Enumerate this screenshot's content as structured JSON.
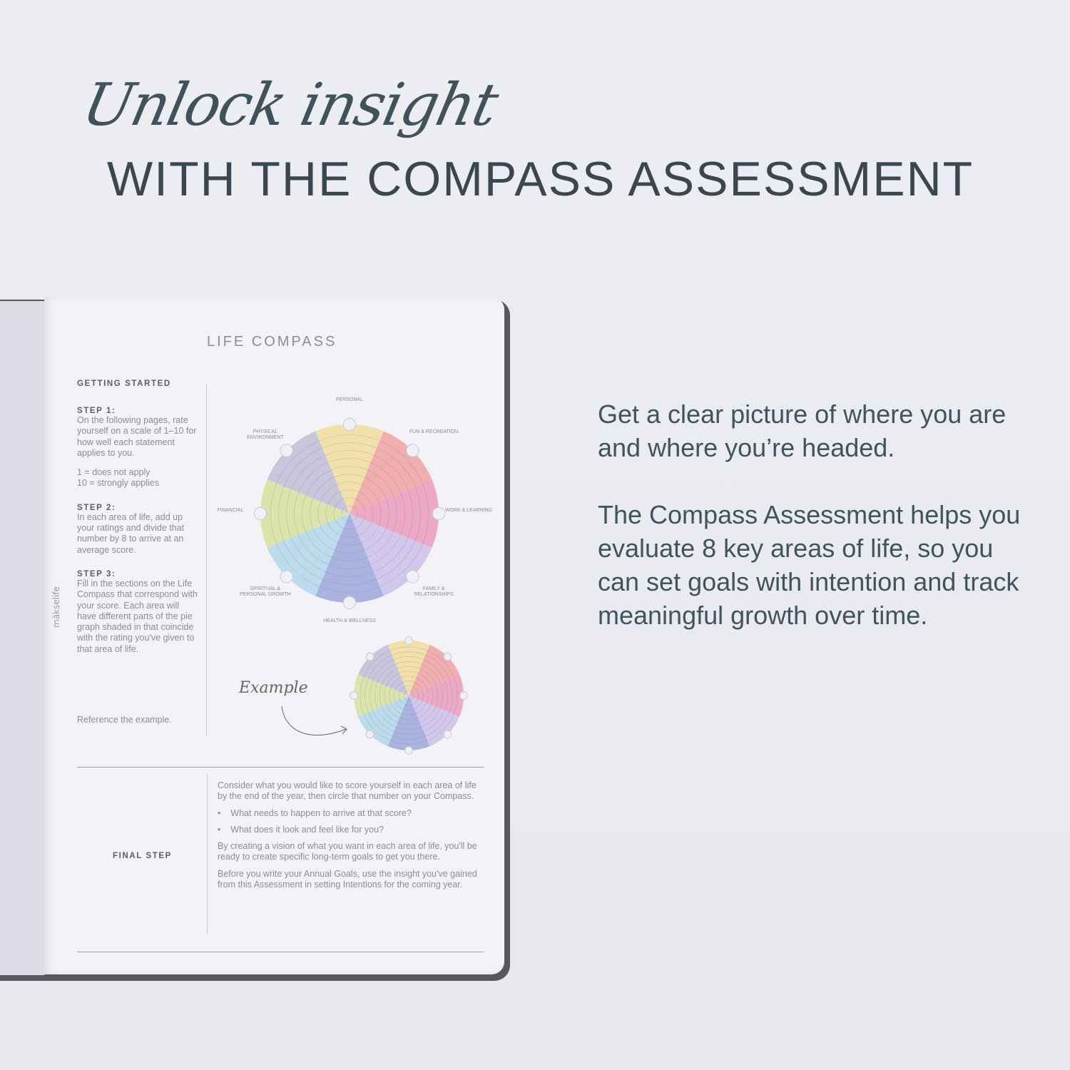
{
  "headline": {
    "script": "Unlock insight",
    "title": "WITH THE COMPASS ASSESSMENT"
  },
  "right": {
    "p1": "Get a clear picture of where you are and where you’re headed.",
    "p2": "The Compass Assessment helps you evaluate 8 key areas of life, so you can set goals with intention and track meaningful growth over time."
  },
  "page": {
    "title": "LIFE COMPASS",
    "brand": "mäkselife",
    "getting_started": "GETTING STARTED",
    "steps": [
      {
        "label": "STEP 1:",
        "text": "On the following pages, rate yourself on a scale of 1–10 for how well each statement applies to you.",
        "scale": [
          "1 = does not apply",
          "10 = strongly applies"
        ]
      },
      {
        "label": "STEP 2:",
        "text": "In each area of life, add up your ratings and divide that number by 8 to arrive at an average score."
      },
      {
        "label": "STEP 3:",
        "text": "Fill in the sections on the Life Compass that correspond with your score. Each area will have different parts of the pie graph shaded in that coincide with the rating you've given to that area of life."
      }
    ],
    "reference": "Reference the example.",
    "example_label": "Example",
    "final_step": "FINAL STEP",
    "final": {
      "p1": "Consider what you would like to score yourself in each area of life by the end of the year, then circle that number on your Compass.",
      "bullets": [
        "What needs to happen to arrive at that score?",
        "What does it look and feel like for you?"
      ],
      "p2": "By creating a vision of what you want in each area of life, you'll be ready to create specific long-term goals to get you there.",
      "p3": "Before you write your Annual Goals, use the insight you've gained from this Assessment in setting Intentions for the coming year."
    }
  },
  "compass": {
    "areas": [
      {
        "name": "PERSONAL",
        "color": "#f2e0aa"
      },
      {
        "name": "FUN & RECREATION",
        "color": "#f1aeae"
      },
      {
        "name": "WORK & LEARNING",
        "color": "#eba9c3"
      },
      {
        "name": "FAMILY & RELATIONSHIPS",
        "color": "#d2c8ec"
      },
      {
        "name": "HEALTH & WELLNESS",
        "color": "#aab2e0"
      },
      {
        "name": "SPIRITUAL & PERSONAL GROWTH",
        "color": "#bcdcee"
      },
      {
        "name": "FINANCIAL",
        "color": "#dbe5ab"
      },
      {
        "name": "PHYSICAL ENVIRONMENT",
        "color": "#c9c6dc"
      }
    ],
    "scale_max": 10
  }
}
